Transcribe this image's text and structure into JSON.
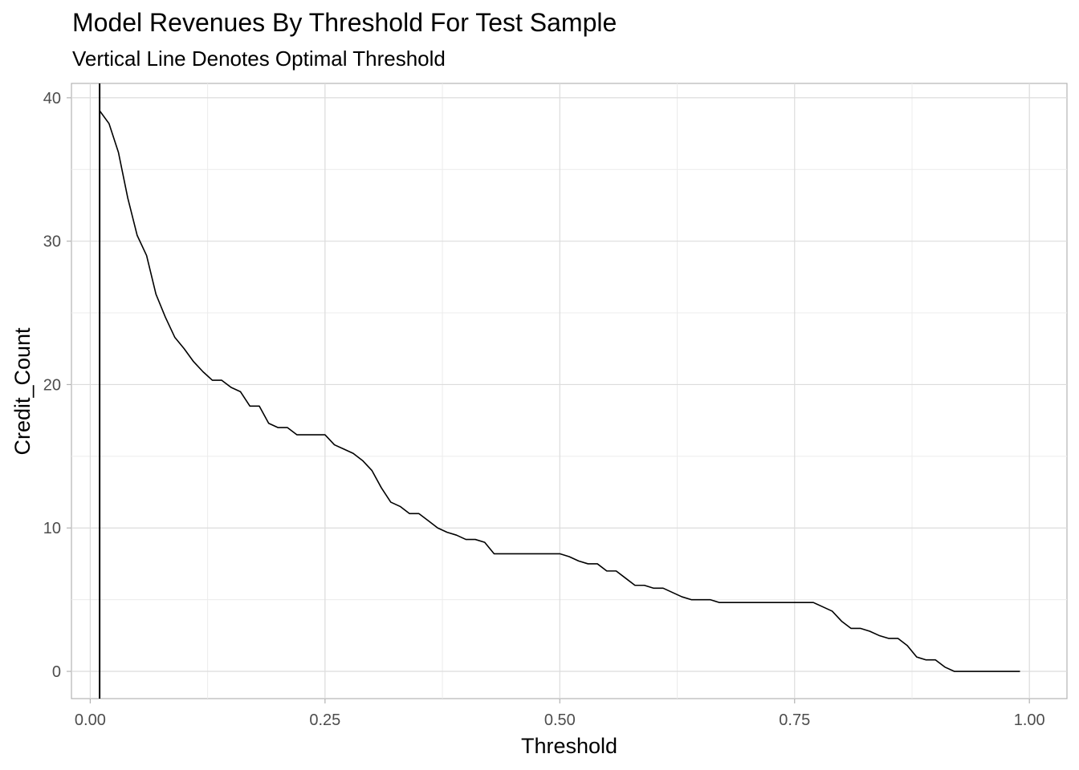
{
  "title": "Model Revenues By Threshold For Test Sample",
  "subtitle": "Vertical Line Denotes Optimal Threshold",
  "chart_data": {
    "type": "line",
    "title": "Model Revenues By Threshold For Test Sample",
    "subtitle": "Vertical Line Denotes Optimal Threshold",
    "xlabel": "Threshold",
    "ylabel": "Credit_Count",
    "xlim": [
      -0.02,
      1.04
    ],
    "ylim": [
      -1.9,
      41
    ],
    "x_ticks": [
      0.0,
      0.25,
      0.5,
      0.75,
      1.0
    ],
    "x_tick_labels": [
      "0.00",
      "0.25",
      "0.50",
      "0.75",
      "1.00"
    ],
    "y_ticks": [
      0,
      10,
      20,
      30,
      40
    ],
    "y_tick_labels": [
      "0",
      "10",
      "20",
      "30",
      "40"
    ],
    "grid": true,
    "vline_x": 0.01,
    "series": [
      {
        "x": [
          0.01,
          0.02,
          0.03,
          0.04,
          0.05,
          0.06,
          0.07,
          0.08,
          0.09,
          0.1,
          0.11,
          0.12,
          0.13,
          0.14,
          0.15,
          0.16,
          0.17,
          0.18,
          0.19,
          0.2,
          0.21,
          0.22,
          0.23,
          0.24,
          0.25,
          0.26,
          0.27,
          0.28,
          0.29,
          0.3,
          0.31,
          0.32,
          0.33,
          0.34,
          0.35,
          0.36,
          0.37,
          0.38,
          0.39,
          0.4,
          0.41,
          0.42,
          0.43,
          0.44,
          0.45,
          0.46,
          0.47,
          0.48,
          0.49,
          0.5,
          0.51,
          0.52,
          0.53,
          0.54,
          0.55,
          0.56,
          0.57,
          0.58,
          0.59,
          0.6,
          0.61,
          0.62,
          0.63,
          0.64,
          0.65,
          0.66,
          0.67,
          0.68,
          0.69,
          0.7,
          0.71,
          0.72,
          0.73,
          0.74,
          0.75,
          0.76,
          0.77,
          0.78,
          0.79,
          0.8,
          0.81,
          0.82,
          0.83,
          0.84,
          0.85,
          0.86,
          0.87,
          0.88,
          0.89,
          0.9,
          0.91,
          0.92,
          0.93,
          0.94,
          0.95,
          0.96,
          0.97,
          0.98,
          0.99
        ],
        "y": [
          39.1,
          38.2,
          36.2,
          33.0,
          30.4,
          29.0,
          26.3,
          24.7,
          23.3,
          22.5,
          21.6,
          20.9,
          20.3,
          20.3,
          19.8,
          19.5,
          18.5,
          18.5,
          17.3,
          17.0,
          17.0,
          16.5,
          16.5,
          16.5,
          16.5,
          15.8,
          15.5,
          15.2,
          14.7,
          14.0,
          12.8,
          11.8,
          11.5,
          11.0,
          11.0,
          10.5,
          10.0,
          9.7,
          9.5,
          9.2,
          9.2,
          9.0,
          8.2,
          8.2,
          8.2,
          8.2,
          8.2,
          8.2,
          8.2,
          8.2,
          8.0,
          7.7,
          7.5,
          7.5,
          7.0,
          7.0,
          6.5,
          6.0,
          6.0,
          5.8,
          5.8,
          5.5,
          5.2,
          5.0,
          5.0,
          5.0,
          4.8,
          4.8,
          4.8,
          4.8,
          4.8,
          4.8,
          4.8,
          4.8,
          4.8,
          4.8,
          4.8,
          4.5,
          4.2,
          3.5,
          3.0,
          3.0,
          2.8,
          2.5,
          2.3,
          2.3,
          1.8,
          1.0,
          0.8,
          0.8,
          0.3,
          0.0,
          0.0,
          0.0,
          0.0,
          0.0,
          0.0,
          0.0,
          0.0
        ]
      }
    ]
  }
}
